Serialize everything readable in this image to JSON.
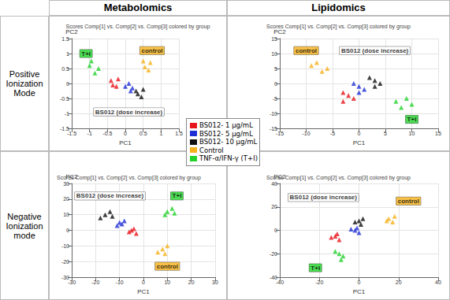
{
  "columns": [
    "Metabolomics",
    "Lipidomics"
  ],
  "rows": [
    "Positive Ionization Mode",
    "Negative Ionization mode"
  ],
  "chart_data": [
    {
      "type": "scatter",
      "title": "Scores Comp[1] vs. Comp[2] vs. Comp[3] colored by group",
      "x_label": "PC1",
      "y_label": "PC2",
      "xlim": [
        -1.5,
        1.5
      ],
      "xticks": [
        -1.5,
        -1,
        -0.5,
        0,
        0.5,
        1,
        1.5
      ],
      "ylim": [
        -1.5,
        1.5
      ],
      "yticks": [
        -1.5,
        -1,
        -0.5,
        0,
        0.5,
        1,
        1.5
      ],
      "grid": true,
      "marker": "triangle",
      "series": [
        {
          "name": "BS012- 1 µg/mL",
          "color": "#e8141c",
          "values": [
            [
              -0.4,
              0.1
            ],
            [
              -0.25,
              -0.1
            ],
            [
              -0.35,
              -0.05
            ],
            [
              -0.2,
              0.15
            ]
          ]
        },
        {
          "name": "BS012- 5 µg/mL",
          "color": "#1f2fd6",
          "values": [
            [
              0.0,
              -0.1
            ],
            [
              0.15,
              -0.25
            ],
            [
              0.1,
              0.0
            ],
            [
              0.2,
              -0.15
            ]
          ]
        },
        {
          "name": "BS012- 10 µg/mL",
          "color": "#111111",
          "values": [
            [
              0.35,
              -0.35
            ],
            [
              0.5,
              -0.2
            ],
            [
              0.45,
              -0.45
            ],
            [
              0.3,
              -0.25
            ]
          ]
        },
        {
          "name": "Control",
          "color": "#f5b21b",
          "values": [
            [
              0.55,
              0.55
            ],
            [
              0.7,
              0.7
            ],
            [
              0.65,
              0.45
            ],
            [
              0.5,
              0.75
            ]
          ]
        },
        {
          "name": "TNF-α/IFN-γ (T+I)",
          "color": "#22d22a",
          "values": [
            [
              -1.0,
              0.6
            ],
            [
              -0.85,
              0.35
            ],
            [
              -0.95,
              0.75
            ],
            [
              -0.75,
              0.5
            ]
          ]
        }
      ],
      "annotations": [
        {
          "text": "T+I",
          "x": -1.1,
          "y": 1.0,
          "color": "#22d22a"
        },
        {
          "text": "control",
          "x": 0.75,
          "y": 1.1,
          "color": "#f5b21b"
        },
        {
          "text": "BS012 (dose increase)",
          "x": 0.1,
          "y": -0.95,
          "color": "#ffffff"
        }
      ]
    },
    {
      "type": "scatter",
      "title": "Scores Comp[1] vs. Comp[2] vs. Comp[3] colored by group",
      "x_label": "PC1",
      "y_label": "PC2",
      "xlim": [
        -15,
        15
      ],
      "xticks": [
        -15,
        -10,
        -5,
        0,
        5,
        10,
        15
      ],
      "ylim": [
        -15,
        15
      ],
      "yticks": [
        -15,
        -10,
        -5,
        0,
        5,
        10,
        15
      ],
      "grid": true,
      "marker": "triangle",
      "series": [
        {
          "name": "BS012- 1 µg/mL",
          "color": "#e8141c",
          "values": [
            [
              -3,
              -3
            ],
            [
              -1,
              -5
            ],
            [
              -2,
              -4
            ],
            [
              -3,
              -6
            ]
          ]
        },
        {
          "name": "BS012- 5 µg/mL",
          "color": "#1f2fd6",
          "values": [
            [
              0,
              -1
            ],
            [
              1,
              -2
            ],
            [
              -1,
              0
            ],
            [
              0,
              -3
            ]
          ]
        },
        {
          "name": "BS012- 10 µg/mL",
          "color": "#111111",
          "values": [
            [
              3,
              1
            ],
            [
              4,
              0
            ],
            [
              2,
              2
            ],
            [
              3,
              -1
            ]
          ]
        },
        {
          "name": "Control",
          "color": "#f5b21b",
          "values": [
            [
              -9,
              6
            ],
            [
              -7,
              4
            ],
            [
              -8,
              7
            ],
            [
              -6,
              5
            ]
          ]
        },
        {
          "name": "TNF-α/IFN-γ (T+I)",
          "color": "#22d22a",
          "values": [
            [
              7,
              -6
            ],
            [
              9,
              -5
            ],
            [
              8,
              -8
            ],
            [
              10,
              -7
            ]
          ]
        }
      ],
      "annotations": [
        {
          "text": "control",
          "x": -10,
          "y": 11,
          "color": "#f5b21b"
        },
        {
          "text": "T+I",
          "x": 10,
          "y": -12,
          "color": "#22d22a"
        },
        {
          "text": "BS012 (dose increase)",
          "x": 3,
          "y": 11,
          "color": "#ffffff"
        }
      ]
    },
    {
      "type": "scatter",
      "title": "Scores Comp[1] vs. Comp[2] vs. Comp[3] colored by group",
      "x_label": "PC1",
      "y_label": "PC2",
      "xlim": [
        -30,
        30
      ],
      "xticks": [
        -30,
        -20,
        -10,
        0,
        10,
        20,
        30
      ],
      "ylim": [
        -30,
        30
      ],
      "yticks": [
        -30,
        -20,
        -10,
        0,
        10,
        20,
        30
      ],
      "grid": true,
      "marker": "triangle",
      "series": [
        {
          "name": "BS012- 1 µg/mL",
          "color": "#e8141c",
          "values": [
            [
              -5,
              0
            ],
            [
              -3,
              -2
            ],
            [
              -6,
              -1
            ],
            [
              -4,
              1
            ]
          ]
        },
        {
          "name": "BS012- 5 µg/mL",
          "color": "#1f2fd6",
          "values": [
            [
              -10,
              5
            ],
            [
              -8,
              6
            ],
            [
              -11,
              3
            ],
            [
              -9,
              4
            ]
          ]
        },
        {
          "name": "BS012- 10 µg/mL",
          "color": "#111111",
          "values": [
            [
              -16,
              10
            ],
            [
              -14,
              12
            ],
            [
              -18,
              8
            ],
            [
              -13,
              9
            ]
          ]
        },
        {
          "name": "Control",
          "color": "#f5b21b",
          "values": [
            [
              8,
              -12
            ],
            [
              10,
              -10
            ],
            [
              6,
              -14
            ],
            [
              9,
              -15
            ]
          ]
        },
        {
          "name": "TNF-α/IFN-γ (T+I)",
          "color": "#22d22a",
          "values": [
            [
              10,
              12
            ],
            [
              12,
              14
            ],
            [
              9,
              10
            ],
            [
              13,
              11
            ]
          ]
        }
      ],
      "annotations": [
        {
          "text": "BS012 (dose increase)",
          "x": -14,
          "y": 22,
          "color": "#ffffff"
        },
        {
          "text": "T+I",
          "x": 14,
          "y": 22,
          "color": "#22d22a"
        },
        {
          "text": "control",
          "x": 10,
          "y": -23,
          "color": "#f5b21b"
        }
      ]
    },
    {
      "type": "scatter",
      "title": "Scores Comp[1] vs. Comp[2] vs. Comp[3] colored by group",
      "x_label": "PC1",
      "y_label": "PC2",
      "xlim": [
        -40,
        40
      ],
      "xticks": [
        -40,
        -20,
        0,
        20,
        40
      ],
      "ylim": [
        -40,
        40
      ],
      "yticks": [
        -40,
        -20,
        0,
        20,
        40
      ],
      "grid": true,
      "marker": "triangle",
      "series": [
        {
          "name": "BS012- 1 µg/mL",
          "color": "#e8141c",
          "values": [
            [
              -12,
              -5
            ],
            [
              -10,
              -8
            ],
            [
              -14,
              -6
            ],
            [
              -11,
              -3
            ]
          ]
        },
        {
          "name": "BS012- 5 µg/mL",
          "color": "#1f2fd6",
          "values": [
            [
              -2,
              0
            ],
            [
              0,
              -2
            ],
            [
              -4,
              1
            ],
            [
              -1,
              2
            ]
          ]
        },
        {
          "name": "BS012- 10 µg/mL",
          "color": "#111111",
          "values": [
            [
              0,
              8
            ],
            [
              2,
              10
            ],
            [
              -2,
              7
            ],
            [
              1,
              5
            ]
          ]
        },
        {
          "name": "Control",
          "color": "#f5b21b",
          "values": [
            [
              15,
              10
            ],
            [
              18,
              12
            ],
            [
              14,
              8
            ],
            [
              17,
              7
            ]
          ]
        },
        {
          "name": "TNF-α/IFN-γ (T+I)",
          "color": "#22d22a",
          "values": [
            [
              -10,
              -20
            ],
            [
              -8,
              -22
            ],
            [
              -12,
              -18
            ],
            [
              -9,
              -25
            ]
          ]
        }
      ],
      "annotations": [
        {
          "text": "BS012 (dose increase)",
          "x": -18,
          "y": 28,
          "color": "#ffffff"
        },
        {
          "text": "control",
          "x": 25,
          "y": 25,
          "color": "#f5b21b"
        },
        {
          "text": "T+I",
          "x": -22,
          "y": -32,
          "color": "#22d22a"
        }
      ]
    }
  ]
}
